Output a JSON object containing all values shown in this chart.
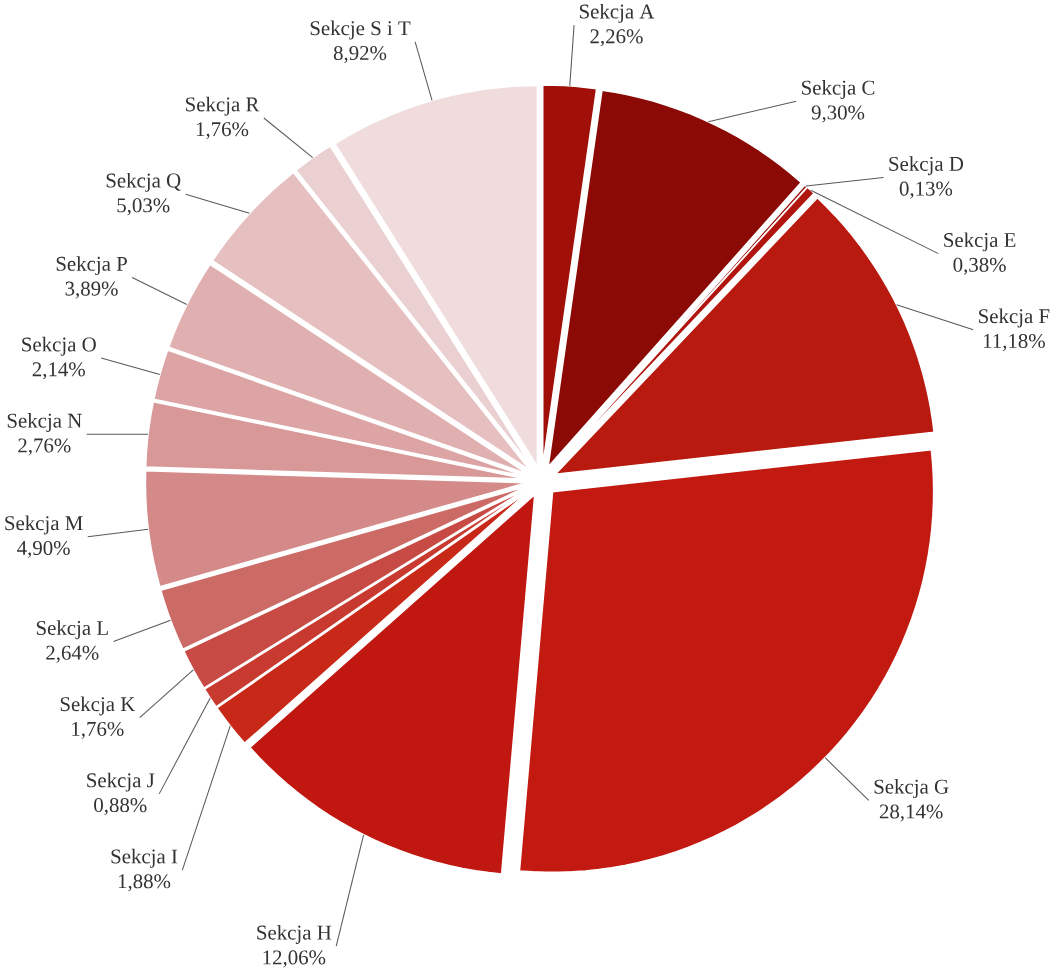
{
  "chart_data": {
    "type": "pie",
    "categories": [
      "Sekcja A",
      "Sekcja C",
      "Sekcja D",
      "Sekcja E",
      "Sekcja F",
      "Sekcja G",
      "Sekcja H",
      "Sekcja I",
      "Sekcja J",
      "Sekcja K",
      "Sekcja L",
      "Sekcja M",
      "Sekcja N",
      "Sekcja O",
      "Sekcja P",
      "Sekcja Q",
      "Sekcja R",
      "Sekcje S i T"
    ],
    "values": [
      2.26,
      9.3,
      0.13,
      0.38,
      11.18,
      28.14,
      12.06,
      1.88,
      0.88,
      1.76,
      2.64,
      4.9,
      2.76,
      2.14,
      3.89,
      5.03,
      1.76,
      8.92
    ],
    "value_labels": [
      "2,26%",
      "9,30%",
      "0,13%",
      "0,38%",
      "11,18%",
      "28,14%",
      "12,06%",
      "1,88%",
      "0,88%",
      "1,76%",
      "2,64%",
      "4,90%",
      "2,76%",
      "2,14%",
      "3,89%",
      "5,03%",
      "1,76%",
      "8,92%"
    ],
    "colors": [
      "#a01008",
      "#8c0a05",
      "#9a0f0a",
      "#b01510",
      "#b81a10",
      "#c21a10",
      "#c01810",
      "#c82818",
      "#c83a30",
      "#c84a44",
      "#cc6a66",
      "#d48a88",
      "#d89898",
      "#dca4a4",
      "#e0b0b0",
      "#e6c0c0",
      "#ead0d0",
      "#f0dcdc"
    ]
  }
}
